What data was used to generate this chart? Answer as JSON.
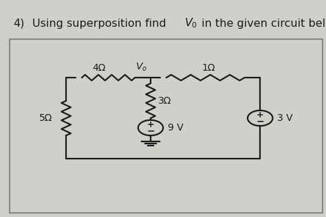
{
  "title_num": "4)",
  "title_text": "  Using superposition find ",
  "title_vo": "V",
  "title_sub": "0",
  "title_rest": " in the given circuit below",
  "title_fontsize": 11.5,
  "bg_color": "#d0cfcb",
  "box_bg": "#dddbd6",
  "box_edge": "#888880",
  "text_color": "#1a1a1a",
  "wire_color": "#1a1a1a",
  "resistor_4": "4Ω",
  "resistor_1": "1Ω",
  "resistor_3": "3Ω",
  "resistor_5": "5Ω",
  "voltage_9": "9 V",
  "voltage_3": "3 V",
  "label_vo": "V",
  "label_vo_sub": "o"
}
